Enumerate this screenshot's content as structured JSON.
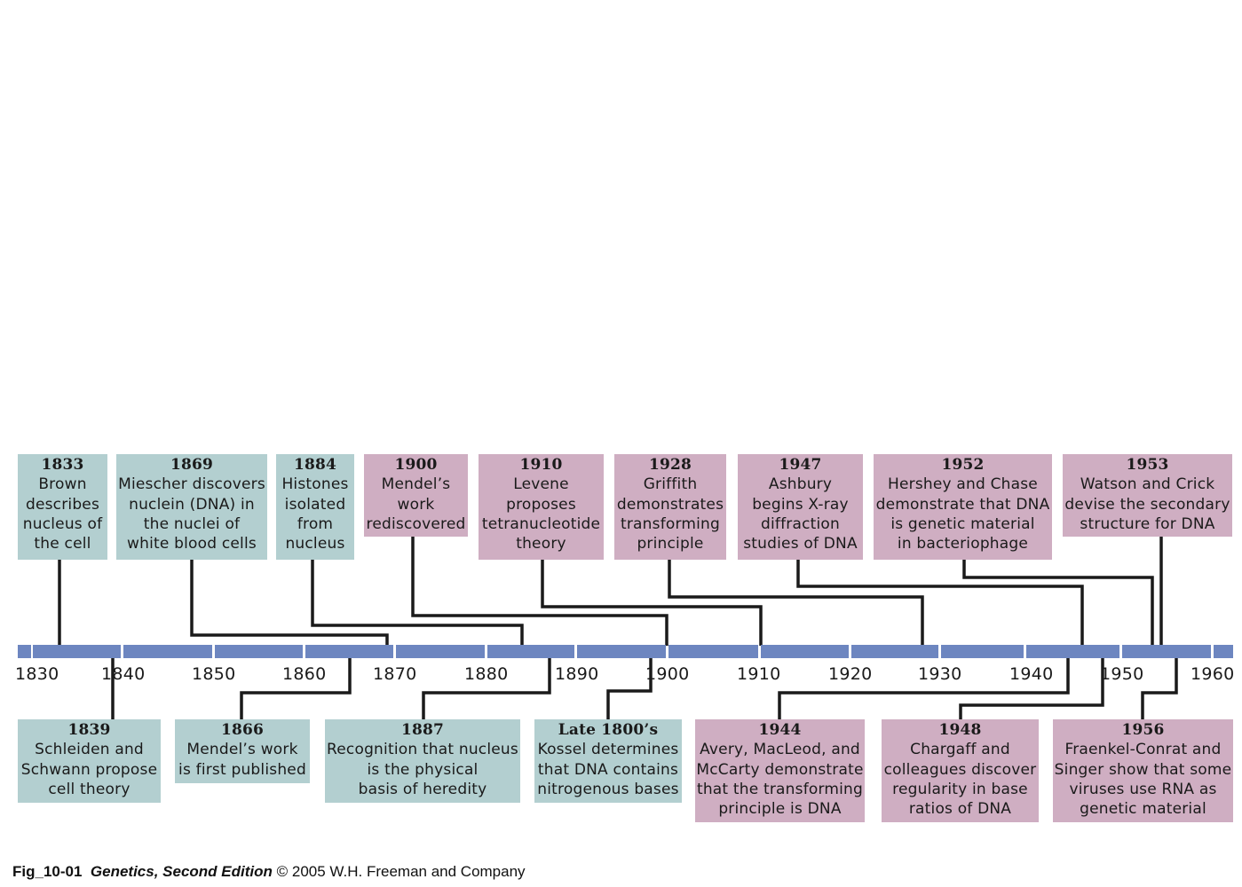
{
  "timeline": {
    "ticks": [
      "1830",
      "1840",
      "1850",
      "1860",
      "1870",
      "1880",
      "1890",
      "1900",
      "1910",
      "1920",
      "1930",
      "1940",
      "1950",
      "1960"
    ],
    "events_above": [
      {
        "year": "1833",
        "text": "Brown describes nucleus of the cell",
        "lines": [
          "Brown",
          "describes",
          "nucleus of",
          "the cell"
        ],
        "category": "cell"
      },
      {
        "year": "1869",
        "text": "Miescher discovers nuclein (DNA) in the nuclei of white blood cells",
        "lines": [
          "Miescher discovers",
          "nuclein (DNA) in",
          "the nuclei of",
          "white blood cells"
        ],
        "category": "cell"
      },
      {
        "year": "1884",
        "text": "Histones isolated from nucleus",
        "lines": [
          "Histones",
          "isolated",
          "from",
          "nucleus"
        ],
        "category": "cell"
      },
      {
        "year": "1900",
        "text": "Mendel’s work rediscovered",
        "lines": [
          "Mendel’s",
          "work",
          "rediscovered"
        ],
        "category": "dna"
      },
      {
        "year": "1910",
        "text": "Levene proposes tetranucleotide theory",
        "lines": [
          "Levene",
          "proposes",
          "tetranucleotide",
          "theory"
        ],
        "category": "dna"
      },
      {
        "year": "1928",
        "text": "Griffith demonstrates transforming principle",
        "lines": [
          "Griffith",
          "demonstrates",
          "transforming",
          "principle"
        ],
        "category": "dna"
      },
      {
        "year": "1947",
        "text": "Ashbury begins X-ray diffraction studies of DNA",
        "lines": [
          "Ashbury",
          "begins X-ray",
          "diffraction",
          "studies of DNA"
        ],
        "category": "dna"
      },
      {
        "year": "1952",
        "text": "Hershey and Chase demonstrate that DNA is genetic material in bacteriophage",
        "lines": [
          "Hershey and Chase",
          "demonstrate that DNA",
          "is genetic material",
          "in bacteriophage"
        ],
        "category": "dna"
      },
      {
        "year": "1953",
        "text": "Watson and Crick devise the secondary structure for DNA",
        "lines": [
          "Watson and Crick",
          "devise the secondary",
          "structure for DNA"
        ],
        "category": "dna"
      }
    ],
    "events_below": [
      {
        "year": "1839",
        "text": "Schleiden and Schwann propose cell theory",
        "lines": [
          "Schleiden and",
          "Schwann propose",
          "cell theory"
        ],
        "category": "cell"
      },
      {
        "year": "1866",
        "text": "Mendel’s work is first published",
        "lines": [
          "Mendel’s work",
          "is first published"
        ],
        "category": "cell"
      },
      {
        "year": "1887",
        "text": "Recognition that nucleus is the physical basis of heredity",
        "lines": [
          "Recognition that nucleus",
          "is the physical",
          "basis of heredity"
        ],
        "category": "cell"
      },
      {
        "year": "Late 1800’s",
        "text": "Kossel determines that DNA contains nitrogenous bases",
        "lines": [
          "Kossel determines",
          "that DNA contains",
          "nitrogenous bases"
        ],
        "category": "cell"
      },
      {
        "year": "1944",
        "text": "Avery, MacLeod, and McCarty demonstrate that the transforming principle is DNA",
        "lines": [
          "Avery, MacLeod, and",
          "McCarty demonstrate",
          "that the transforming",
          "principle is DNA"
        ],
        "category": "dna"
      },
      {
        "year": "1948",
        "text": "Chargaff and colleagues discover regularity in base ratios of DNA",
        "lines": [
          "Chargaff and",
          "colleagues discover",
          "regularity in base",
          "ratios of DNA"
        ],
        "category": "dna"
      },
      {
        "year": "1956",
        "text": "Fraenkel-Conrat and Singer show that some viruses use RNA as genetic material",
        "lines": [
          "Fraenkel-Conrat and",
          "Singer show that some",
          "viruses use RNA as",
          "genetic material"
        ],
        "category": "dna"
      }
    ],
    "colors": {
      "cell": "#b3cfd0",
      "dna": "#cfaec2",
      "bar": "#6d86c0",
      "connector": "#1a1a1a"
    }
  },
  "caption": {
    "fig": "Fig_10-01",
    "book": "Genetics, Second Edition",
    "rest": "© 2005 W.H. Freeman and Company"
  }
}
